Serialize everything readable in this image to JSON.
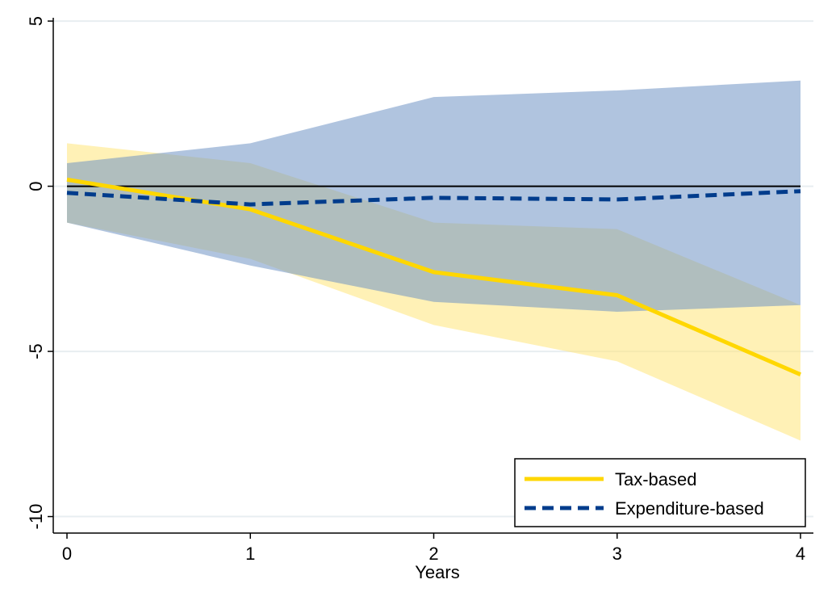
{
  "chart_data": {
    "type": "line",
    "title": "",
    "xlabel": "Years",
    "ylabel": "",
    "x": [
      0,
      1,
      2,
      3,
      4
    ],
    "xlim": [
      0,
      4
    ],
    "ylim": [
      -10.5,
      5.1
    ],
    "x_ticks": [
      "0",
      "1",
      "2",
      "3",
      "4"
    ],
    "y_ticks": [
      {
        "value": 5,
        "label": "5"
      },
      {
        "value": 0,
        "label": "0"
      },
      {
        "value": -5,
        "label": "-5"
      },
      {
        "value": -10,
        "label": "-10"
      }
    ],
    "reference_line": 0,
    "grid": true,
    "legend_position": "bottom-right",
    "series": [
      {
        "name": "Tax-based",
        "values": [
          0.2,
          -0.7,
          -2.6,
          -3.3,
          -5.7
        ],
        "band_upper": [
          1.3,
          0.7,
          -1.1,
          -1.3,
          -3.6
        ],
        "band_lower": [
          -1.1,
          -2.2,
          -4.2,
          -5.3,
          -7.7
        ],
        "color": "#ffd700",
        "band_color": "#ffe57a",
        "dash": false
      },
      {
        "name": "Expenditure-based",
        "values": [
          -0.2,
          -0.55,
          -0.35,
          -0.4,
          -0.15
        ],
        "band_upper": [
          0.7,
          1.3,
          2.7,
          2.9,
          3.2
        ],
        "band_lower": [
          -1.1,
          -2.4,
          -3.5,
          -3.8,
          -3.6
        ],
        "color": "#003c8c",
        "band_color": "#6f93c4",
        "dash": true
      }
    ]
  }
}
